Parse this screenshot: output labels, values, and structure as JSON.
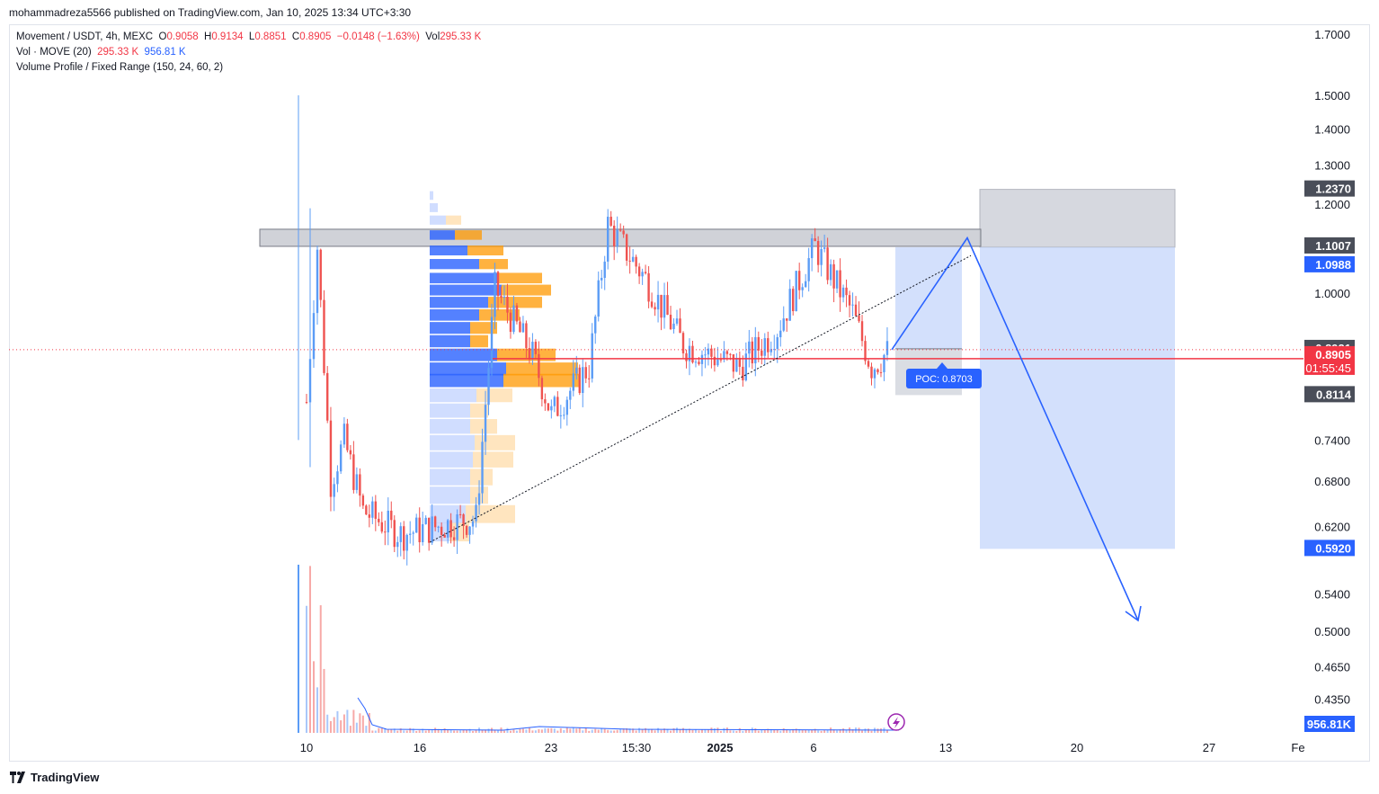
{
  "header": {
    "published": "mohammadreza5566 published on TradingView.com, Jan 10, 2025 13:34 UTC+3:30"
  },
  "legend": {
    "symbol": "Movement / USDT, 4h, MEXC",
    "o_label": "O",
    "o_value": "0.9058",
    "h_label": "H",
    "h_value": "0.9134",
    "l_label": "L",
    "l_value": "0.8851",
    "c_label": "C",
    "c_value": "0.8905",
    "change": "−0.0148 (−1.63%)",
    "vol_label": "Vol",
    "vol_value": "295.33 K",
    "vol_indicator": "Vol · MOVE (20)",
    "vol_indicator_value1": "295.33 K",
    "vol_indicator_value2": "956.81 K",
    "volume_profile": "Volume Profile / Fixed Range (150, 24, 60, 2)"
  },
  "colors": {
    "up": "#5b9cf6",
    "down": "#ef5350",
    "accent_blue": "#2962ff",
    "red_line": "#f23645",
    "zone_grey": "#d1d4dc",
    "vp_blue": "#2962ff",
    "vp_orange": "#ff9800"
  },
  "chart_data": {
    "type": "candlestick",
    "symbol": "Movement / USDT",
    "timeframe": "4h",
    "exchange": "MEXC",
    "y_scale": "log",
    "ylim": [
      0.41,
      1.75
    ],
    "y_ticks": [
      "1.7000",
      "1.5000",
      "1.4000",
      "1.3000",
      "1.2000",
      "1.0000",
      "0.7400",
      "0.6800",
      "0.6200",
      "0.5400",
      "0.5000",
      "0.4650",
      "0.4350"
    ],
    "x_ticks": [
      "10",
      "16",
      "23",
      "15:30",
      "2025",
      "6",
      "13",
      "20",
      "27",
      "Fe"
    ],
    "series": [
      {
        "name": "price",
        "approx_path": [
          {
            "t": "Dec 10",
            "close": 0.8
          },
          {
            "t": "Dec 10",
            "close": 1.1
          },
          {
            "t": "Dec 11",
            "close": 0.68
          },
          {
            "t": "Dec 12",
            "close": 0.74
          },
          {
            "t": "Dec 13",
            "close": 0.64
          },
          {
            "t": "Dec 15",
            "close": 0.61
          },
          {
            "t": "Dec 17",
            "close": 0.62
          },
          {
            "t": "Dec 19",
            "close": 0.63
          },
          {
            "t": "Dec 20",
            "close": 1.01
          },
          {
            "t": "Dec 22",
            "close": 0.88
          },
          {
            "t": "Dec 23",
            "close": 0.78
          },
          {
            "t": "Dec 25",
            "close": 0.86
          },
          {
            "t": "Dec 26",
            "close": 1.15
          },
          {
            "t": "Dec 28",
            "close": 1.03
          },
          {
            "t": "Dec 30",
            "close": 0.9
          },
          {
            "t": "Jan 2",
            "close": 0.86
          },
          {
            "t": "Jan 4",
            "close": 0.93
          },
          {
            "t": "Jan 6",
            "close": 1.1
          },
          {
            "t": "Jan 8",
            "close": 0.96
          },
          {
            "t": "Jan 9",
            "close": 0.86
          },
          {
            "t": "Jan 10",
            "close": 0.8905
          }
        ]
      }
    ],
    "last_price": 0.8905,
    "countdown": "01:55:45",
    "price_labels": [
      {
        "value": "1.2370",
        "style": "dark"
      },
      {
        "value": "1.1007",
        "style": "dark"
      },
      {
        "value": "1.0988",
        "style": "blue"
      },
      {
        "value": "0.8921",
        "style": "dark"
      },
      {
        "value": "0.8905",
        "style": "red"
      },
      {
        "value": "0.8114",
        "style": "dark"
      },
      {
        "value": "0.5920",
        "style": "blue"
      },
      {
        "value": "956.81K",
        "style": "blue"
      }
    ],
    "annotations": {
      "resistance_zone": [
        1.1007,
        1.14
      ],
      "poc_label": "POC: 0.8703",
      "poc": 0.8703,
      "position_short": {
        "entry": 1.0988,
        "stop": 1.237,
        "target": 0.592
      },
      "projected_path": [
        0.8905,
        1.12,
        0.5
      ],
      "trendline": [
        0.6,
        1.08
      ],
      "red_line": 0.8905
    }
  },
  "footer": {
    "brand": "TradingView"
  }
}
